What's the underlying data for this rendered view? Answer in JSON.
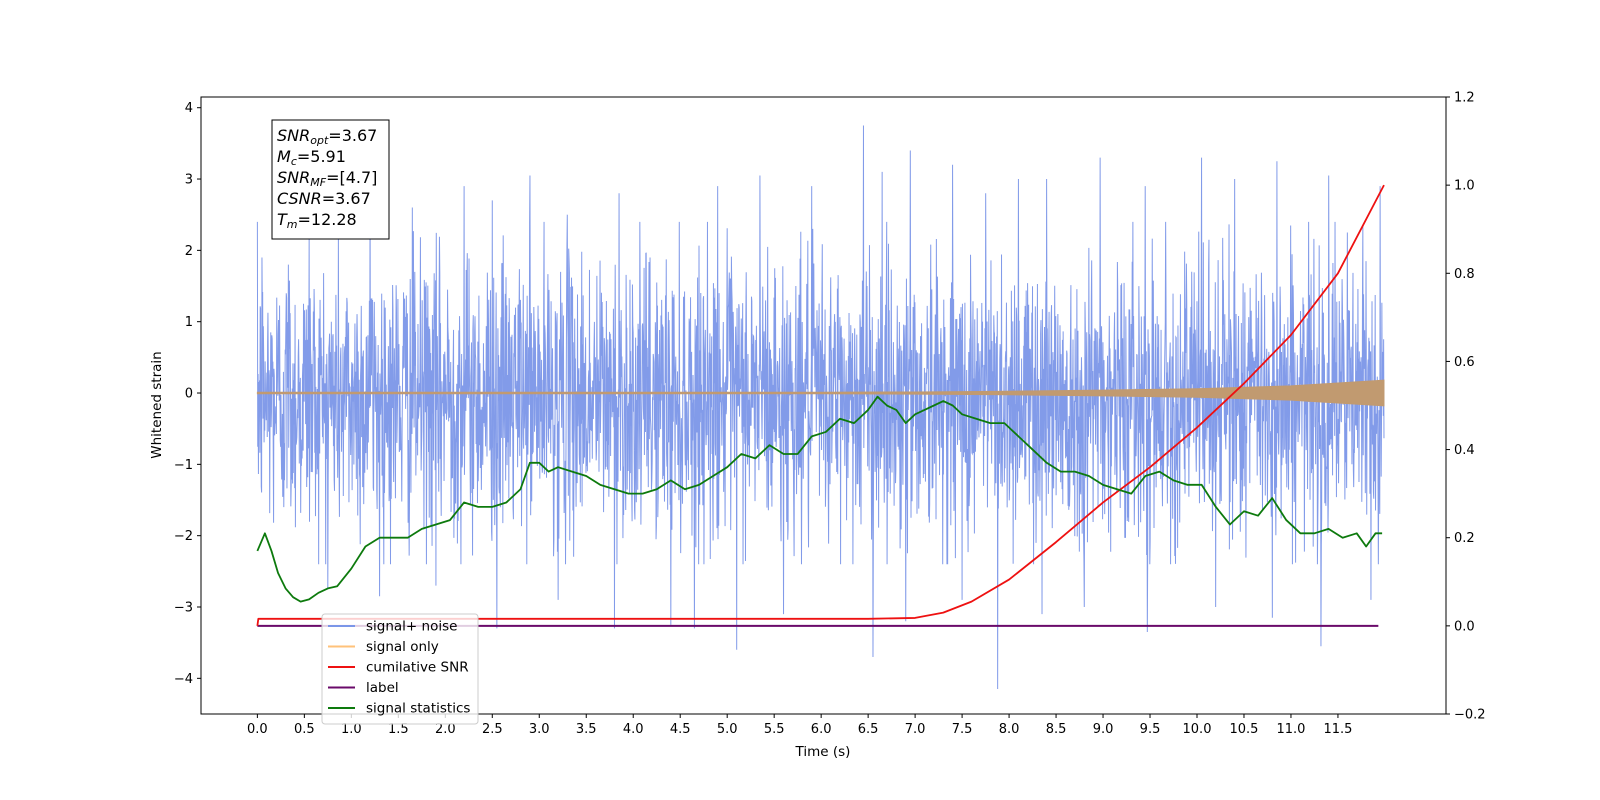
{
  "chart_data": {
    "type": "line",
    "xlabel": "Time (s)",
    "ylabel": "Whitened strain",
    "xlim": [
      -0.6,
      12.65
    ],
    "ylim": [
      -4.5,
      4.15
    ],
    "y2lim": [
      -0.2,
      1.2
    ],
    "x_ticks": [
      "0.0",
      "0.5",
      "1.0",
      "1.5",
      "2.0",
      "2.5",
      "3.0",
      "3.5",
      "4.0",
      "4.5",
      "5.0",
      "5.5",
      "6.0",
      "6.5",
      "7.0",
      "7.5",
      "8.0",
      "8.5",
      "9.0",
      "9.5",
      "10.0",
      "10.5",
      "11.0",
      "11.5"
    ],
    "y_ticks": [
      "-4",
      "-3",
      "-2",
      "-1",
      "0",
      "1",
      "2",
      "3",
      "4"
    ],
    "y2_ticks": [
      "-0.2",
      "0.0",
      "0.2",
      "0.4",
      "0.6",
      "0.8",
      "1.0",
      "1.2"
    ],
    "annotation": [
      {
        "main": "SNR",
        "sub": "opt",
        "rest": "=3.67"
      },
      {
        "main": "M",
        "sub": "c",
        "rest": "=5.91"
      },
      {
        "main": "SNR",
        "sub": "MF",
        "rest": "=[4.7]"
      },
      {
        "main": "CSNR",
        "sub": "",
        "rest": "=3.67"
      },
      {
        "main": "T",
        "sub": "m",
        "rest": "=12.28"
      }
    ],
    "legend_position": "lower-left",
    "series": [
      {
        "name": "signal+ noise",
        "color": "#7b96e8",
        "axis": "left",
        "x_range": [
          0.0,
          11.99
        ],
        "typical_band": [
          -1.6,
          1.5
        ],
        "peaks": [
          [
            0.05,
            1.9
          ],
          [
            0.33,
            1.8
          ],
          [
            0.55,
            2.2
          ],
          [
            1.2,
            2.9
          ],
          [
            1.65,
            2.6
          ],
          [
            2.2,
            2.9
          ],
          [
            2.5,
            2.7
          ],
          [
            2.9,
            3.05
          ],
          [
            3.3,
            2.5
          ],
          [
            3.85,
            2.8
          ],
          [
            4.4,
            3.0
          ],
          [
            4.9,
            2.9
          ],
          [
            5.35,
            3.05
          ],
          [
            5.9,
            2.9
          ],
          [
            6.45,
            3.75
          ],
          [
            6.65,
            3.1
          ],
          [
            6.95,
            3.4
          ],
          [
            7.4,
            3.2
          ],
          [
            7.75,
            2.8
          ],
          [
            8.1,
            3.0
          ],
          [
            8.4,
            3.0
          ],
          [
            8.97,
            3.3
          ],
          [
            9.45,
            2.9
          ],
          [
            10.05,
            3.3
          ],
          [
            10.4,
            3.0
          ],
          [
            10.85,
            3.25
          ],
          [
            11.4,
            3.05
          ],
          [
            11.95,
            2.9
          ]
        ],
        "troughs": [
          [
            0.75,
            -2.75
          ],
          [
            1.3,
            -2.85
          ],
          [
            1.9,
            -2.7
          ],
          [
            2.55,
            -3.3
          ],
          [
            3.2,
            -2.9
          ],
          [
            3.8,
            -3.3
          ],
          [
            4.4,
            -3.25
          ],
          [
            4.65,
            -3.3
          ],
          [
            5.1,
            -3.6
          ],
          [
            5.6,
            -3.1
          ],
          [
            6.55,
            -3.7
          ],
          [
            6.9,
            -3.2
          ],
          [
            7.5,
            -2.9
          ],
          [
            7.88,
            -4.15
          ],
          [
            8.35,
            -3.1
          ],
          [
            8.8,
            -3.0
          ],
          [
            9.47,
            -3.35
          ],
          [
            10.2,
            -3.0
          ],
          [
            10.8,
            -3.15
          ],
          [
            11.32,
            -3.55
          ],
          [
            11.85,
            -2.9
          ]
        ]
      },
      {
        "name": "signal only",
        "color": "#c19a70",
        "axis": "left",
        "envelope": [
          [
            0.0,
            0.01
          ],
          [
            6.0,
            0.01
          ],
          [
            7.0,
            0.015
          ],
          [
            8.0,
            0.025
          ],
          [
            9.0,
            0.04
          ],
          [
            10.0,
            0.06
          ],
          [
            11.0,
            0.1
          ],
          [
            11.99,
            0.18
          ]
        ]
      },
      {
        "name": "cumilative SNR",
        "color": "#ee1111",
        "axis": "right",
        "x": [
          0.0,
          0.01,
          6.5,
          7.0,
          7.3,
          7.6,
          8.0,
          8.5,
          9.0,
          9.5,
          10.0,
          10.5,
          11.0,
          11.5,
          11.99
        ],
        "y": [
          0.0,
          0.016,
          0.016,
          0.018,
          0.03,
          0.055,
          0.105,
          0.19,
          0.28,
          0.36,
          0.45,
          0.55,
          0.66,
          0.8,
          1.0
        ]
      },
      {
        "name": "label",
        "color": "#6a0a6a",
        "axis": "right",
        "x": [
          0.0,
          11.93
        ],
        "y": [
          0.0,
          0.0
        ]
      },
      {
        "name": "signal statistics",
        "color": "#0d7a0d",
        "axis": "right",
        "x": [
          0.0,
          0.08,
          0.15,
          0.22,
          0.3,
          0.38,
          0.46,
          0.55,
          0.65,
          0.75,
          0.85,
          1.0,
          1.15,
          1.3,
          1.45,
          1.6,
          1.75,
          1.9,
          2.05,
          2.2,
          2.35,
          2.5,
          2.65,
          2.8,
          2.9,
          3.0,
          3.1,
          3.2,
          3.35,
          3.5,
          3.65,
          3.8,
          3.95,
          4.1,
          4.25,
          4.4,
          4.55,
          4.7,
          4.85,
          5.0,
          5.15,
          5.3,
          5.45,
          5.6,
          5.75,
          5.9,
          6.05,
          6.2,
          6.35,
          6.5,
          6.6,
          6.7,
          6.8,
          6.9,
          7.0,
          7.1,
          7.2,
          7.3,
          7.4,
          7.5,
          7.65,
          7.8,
          7.95,
          8.1,
          8.25,
          8.4,
          8.55,
          8.7,
          8.85,
          9.0,
          9.15,
          9.3,
          9.45,
          9.6,
          9.75,
          9.9,
          10.05,
          10.2,
          10.35,
          10.5,
          10.65,
          10.8,
          10.95,
          11.1,
          11.25,
          11.4,
          11.55,
          11.7,
          11.8,
          11.9,
          11.97
        ],
        "y": [
          0.17,
          0.21,
          0.17,
          0.12,
          0.085,
          0.065,
          0.055,
          0.06,
          0.075,
          0.085,
          0.09,
          0.13,
          0.18,
          0.2,
          0.2,
          0.2,
          0.22,
          0.23,
          0.24,
          0.28,
          0.27,
          0.27,
          0.28,
          0.31,
          0.37,
          0.37,
          0.35,
          0.36,
          0.35,
          0.34,
          0.32,
          0.31,
          0.3,
          0.3,
          0.31,
          0.33,
          0.31,
          0.32,
          0.34,
          0.36,
          0.39,
          0.38,
          0.41,
          0.39,
          0.39,
          0.43,
          0.44,
          0.47,
          0.46,
          0.49,
          0.52,
          0.5,
          0.49,
          0.46,
          0.48,
          0.49,
          0.5,
          0.51,
          0.5,
          0.48,
          0.47,
          0.46,
          0.46,
          0.43,
          0.4,
          0.37,
          0.35,
          0.35,
          0.34,
          0.32,
          0.31,
          0.3,
          0.34,
          0.35,
          0.33,
          0.32,
          0.32,
          0.27,
          0.23,
          0.26,
          0.25,
          0.29,
          0.24,
          0.21,
          0.21,
          0.22,
          0.2,
          0.21,
          0.18,
          0.21,
          0.21
        ]
      }
    ]
  }
}
